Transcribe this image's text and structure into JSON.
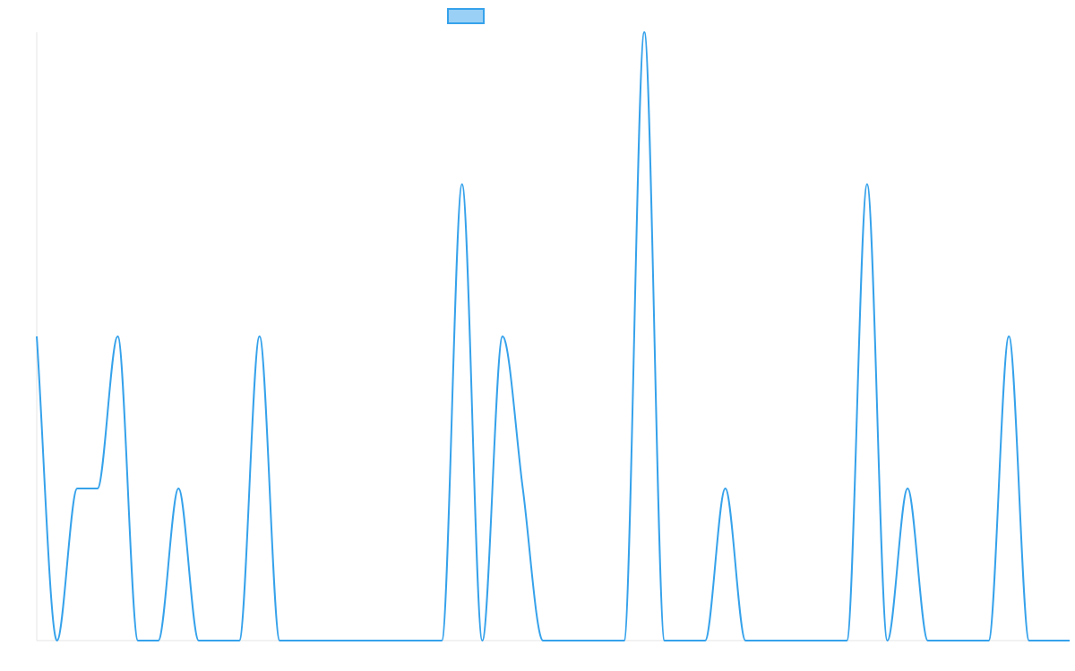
{
  "chart_data": {
    "type": "line",
    "title": "",
    "xlabel": "",
    "ylabel": "",
    "x": [
      0,
      1,
      2,
      3,
      4,
      5,
      6,
      7,
      8,
      9,
      10,
      11,
      12,
      13,
      14,
      15,
      16,
      17,
      18,
      19,
      20,
      21,
      22,
      23,
      24,
      25,
      26,
      27,
      28,
      29,
      30,
      31,
      32,
      33,
      34,
      35,
      36,
      37,
      38,
      39,
      40,
      41,
      42,
      43,
      44,
      45,
      46,
      47,
      48,
      49,
      50,
      51
    ],
    "xlim": [
      0,
      51
    ],
    "ylim": [
      0,
      4
    ],
    "series": [
      {
        "name": "",
        "values": [
          2,
          0,
          1,
          1,
          2,
          0,
          0,
          1,
          0,
          0,
          0,
          2,
          0,
          0,
          0,
          0,
          0,
          0,
          0,
          0,
          0,
          3,
          0,
          2,
          1,
          0,
          0,
          0,
          0,
          0,
          4,
          0,
          0,
          0,
          1,
          0,
          0,
          0,
          0,
          0,
          0,
          3,
          0,
          1,
          0,
          0,
          0,
          0,
          2,
          0,
          0,
          0
        ]
      }
    ],
    "legend": {
      "position": "top-center",
      "show": true
    },
    "grid": false,
    "colors": {
      "line": "#36a2eb",
      "legend_fill": "#9ad0f5",
      "axis": "#e5e5e5"
    }
  }
}
